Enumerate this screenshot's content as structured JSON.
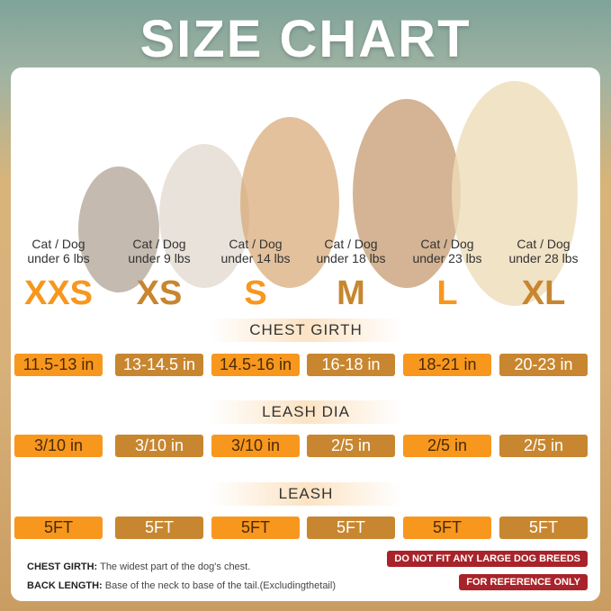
{
  "title": "SIZE CHART",
  "sizes": [
    {
      "label1": "Cat / Dog",
      "label2": "under 6 lbs",
      "size": "XXS",
      "chest": "11.5-13 in",
      "leash_dia": "3/10 in",
      "leash": "5FT"
    },
    {
      "label1": "Cat / Dog",
      "label2": "under 9 lbs",
      "size": "XS",
      "chest": "13-14.5 in",
      "leash_dia": "3/10 in",
      "leash": "5FT"
    },
    {
      "label1": "Cat / Dog",
      "label2": "under 14 lbs",
      "size": "S",
      "chest": "14.5-16 in",
      "leash_dia": "3/10 in",
      "leash": "5FT"
    },
    {
      "label1": "Cat / Dog",
      "label2": "under 18 lbs",
      "size": "M",
      "chest": "16-18 in",
      "leash_dia": "2/5 in",
      "leash": "5FT"
    },
    {
      "label1": "Cat / Dog",
      "label2": "under 23 lbs",
      "size": "L",
      "chest": "18-21 in",
      "leash_dia": "2/5 in",
      "leash": "5FT"
    },
    {
      "label1": "Cat / Dog",
      "label2": "under 28 lbs",
      "size": "XL",
      "chest": "20-23 in",
      "leash_dia": "2/5 in",
      "leash": "5FT"
    }
  ],
  "sections": {
    "chest": "CHEST GIRTH",
    "leash_dia": "LEASH DIA",
    "leash": "LEASH"
  },
  "notes": {
    "chest_label": "CHEST GIRTH:",
    "chest_text": "The widest part of the dog's chest.",
    "back_label": "BACK LENGTH:",
    "back_text": "Base of the neck to base of the tail.(Excludingthetail)"
  },
  "badges": {
    "no_large": "DO NOT FIT ANY LARGE DOG BREEDS",
    "reference": "FOR REFERENCE ONLY"
  },
  "colors": {
    "orange": "#f7971e",
    "brown": "#c7862f",
    "red": "#a8242a"
  }
}
